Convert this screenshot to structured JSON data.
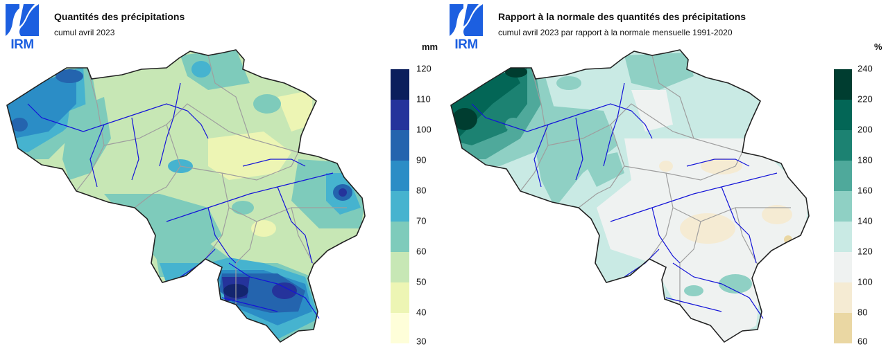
{
  "left": {
    "logo_text": "IRM",
    "title": "Quantités des précipitations",
    "subtitle": "cumul avril 2023",
    "unit": "mm",
    "legend_labels": [
      "120",
      "110",
      "100",
      "90",
      "80",
      "70",
      "60",
      "50",
      "40",
      "30"
    ],
    "legend_colors": [
      "#0b1f5c",
      "#25339b",
      "#2464ae",
      "#2b8dc6",
      "#46b3cf",
      "#7ecbbb",
      "#c7e7b5",
      "#edf5b4",
      "#fefed9"
    ],
    "colors": {
      "base": "#c7e7b5",
      "dark_blue": "#25339b",
      "navy": "#0b1f5c",
      "mid_blue": "#2464ae",
      "blue": "#2b8dc6",
      "cyan": "#46b3cf",
      "teal": "#7ecbbb",
      "yellow": "#edf5b4"
    }
  },
  "right": {
    "logo_text": "IRM",
    "title": "Rapport à la normale des quantités des précipitations",
    "subtitle": "cumul avril 2023 par rapport à la normale mensuelle 1991-2020",
    "unit": "%",
    "legend_labels": [
      "240",
      "220",
      "200",
      "180",
      "160",
      "140",
      "120",
      "100",
      "80",
      "60"
    ],
    "legend_colors": [
      "#003d30",
      "#036656",
      "#1c8272",
      "#4fa99b",
      "#8fd0c4",
      "#c9eae4",
      "#eff2f1",
      "#f5ebd3",
      "#ead7a3"
    ],
    "colors": {
      "base": "#c9eae4",
      "dark": "#036656",
      "darkest": "#003d30",
      "mid": "#1c8272",
      "light_teal": "#8fd0c4",
      "grey": "#eff2f1",
      "tan": "#f5ebd3"
    }
  },
  "colors": {
    "logo_blue": "#1c5fe0",
    "border": "#222222",
    "river": "#1414d8",
    "province": "#9e9e9e"
  }
}
